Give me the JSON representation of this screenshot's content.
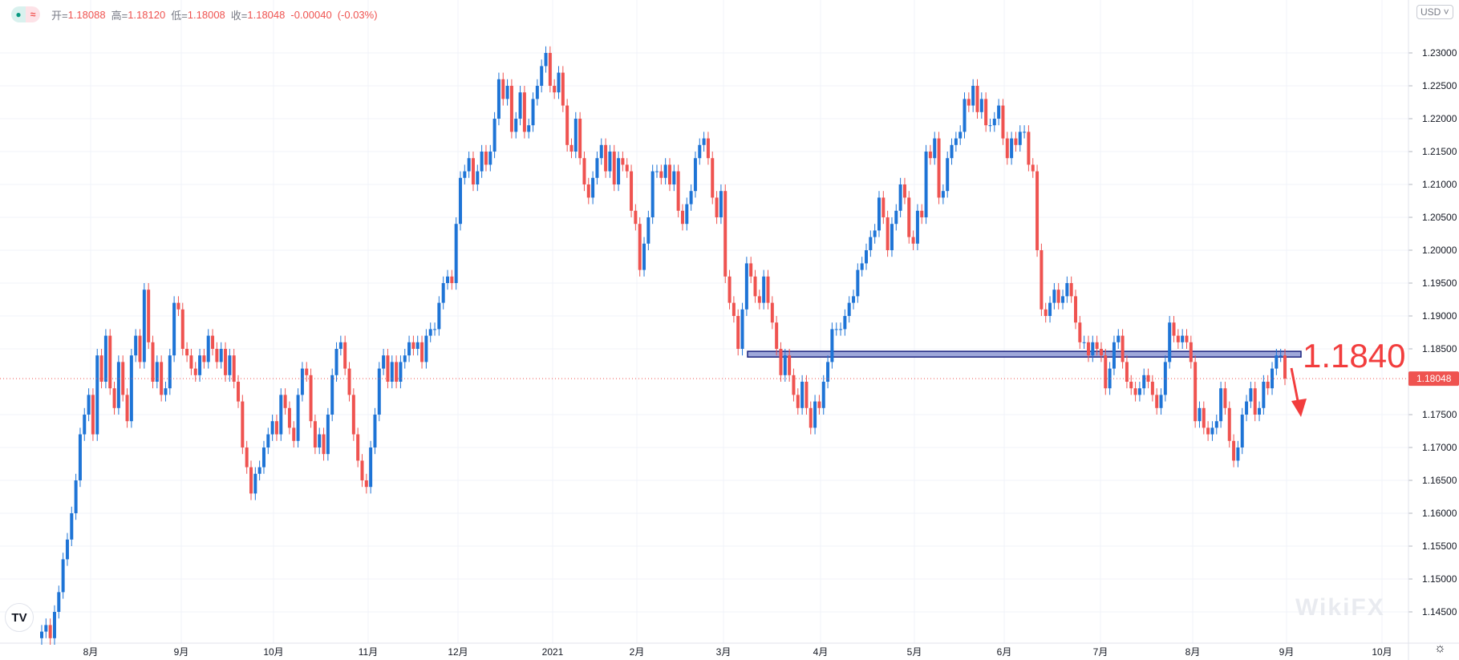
{
  "legend": {
    "open_label": "开=",
    "open": "1.18088",
    "high_label": "高=",
    "high": "1.18120",
    "low_label": "低=",
    "low": "1.18008",
    "close_label": "收=",
    "close": "1.18048",
    "change": "-0.00040",
    "change_pct": "(-0.03%)"
  },
  "currency": "USD ˅",
  "annotation": {
    "text": "1.1840",
    "band": [
      1.184,
      1.1845
    ],
    "color": "#f23d3d"
  },
  "watermark": "WikiFX",
  "logo": "TV",
  "colors": {
    "up": "#1e74d6",
    "down": "#ef5350",
    "grid": "#f0f3fa",
    "band": "#9fa8da"
  },
  "chart_data": {
    "type": "candlestick",
    "ylim": [
      1.1415,
      1.2345
    ],
    "y_ticks": [
      "1.23000",
      "1.22500",
      "1.22000",
      "1.21500",
      "1.21000",
      "1.20500",
      "1.20000",
      "1.19500",
      "1.19000",
      "1.18500",
      "1.17500",
      "1.17000",
      "1.16500",
      "1.16000",
      "1.15500",
      "1.15000",
      "1.14500"
    ],
    "x_ticks": [
      "8月",
      "9月",
      "10月",
      "11月",
      "12月",
      "2021",
      "2月",
      "3月",
      "4月",
      "5月",
      "6月",
      "7月",
      "8月",
      "9月",
      "10月"
    ],
    "last_price": "1.18048",
    "grid": true,
    "close": [
      1.142,
      1.143,
      1.141,
      1.145,
      1.148,
      1.153,
      1.156,
      1.16,
      1.165,
      1.172,
      1.175,
      1.178,
      1.172,
      1.184,
      1.18,
      1.187,
      1.179,
      1.176,
      1.183,
      1.178,
      1.174,
      1.184,
      1.187,
      1.183,
      1.194,
      1.186,
      1.18,
      1.183,
      1.178,
      1.179,
      1.184,
      1.192,
      1.191,
      1.185,
      1.184,
      1.182,
      1.181,
      1.184,
      1.183,
      1.187,
      1.185,
      1.183,
      1.185,
      1.181,
      1.184,
      1.18,
      1.177,
      1.17,
      1.167,
      1.163,
      1.166,
      1.167,
      1.17,
      1.172,
      1.174,
      1.172,
      1.178,
      1.176,
      1.173,
      1.171,
      1.178,
      1.182,
      1.181,
      1.174,
      1.17,
      1.172,
      1.169,
      1.175,
      1.181,
      1.185,
      1.186,
      1.182,
      1.178,
      1.172,
      1.168,
      1.165,
      1.164,
      1.17,
      1.175,
      1.182,
      1.184,
      1.18,
      1.183,
      1.18,
      1.183,
      1.184,
      1.186,
      1.185,
      1.186,
      1.183,
      1.187,
      1.188,
      1.188,
      1.192,
      1.195,
      1.196,
      1.195,
      1.204,
      1.211,
      1.212,
      1.214,
      1.21,
      1.212,
      1.215,
      1.213,
      1.215,
      1.22,
      1.226,
      1.223,
      1.225,
      1.218,
      1.22,
      1.224,
      1.218,
      1.219,
      1.223,
      1.225,
      1.228,
      1.23,
      1.225,
      1.224,
      1.227,
      1.222,
      1.216,
      1.215,
      1.22,
      1.214,
      1.21,
      1.208,
      1.211,
      1.214,
      1.216,
      1.212,
      1.215,
      1.21,
      1.214,
      1.213,
      1.212,
      1.206,
      1.204,
      1.197,
      1.201,
      1.205,
      1.212,
      1.212,
      1.211,
      1.213,
      1.21,
      1.212,
      1.206,
      1.204,
      1.207,
      1.209,
      1.214,
      1.216,
      1.217,
      1.214,
      1.208,
      1.205,
      1.209,
      1.196,
      1.192,
      1.19,
      1.185,
      1.191,
      1.198,
      1.196,
      1.193,
      1.192,
      1.196,
      1.192,
      1.189,
      1.185,
      1.181,
      1.184,
      1.181,
      1.178,
      1.176,
      1.18,
      1.176,
      1.173,
      1.177,
      1.176,
      1.18,
      1.183,
      1.188,
      1.188,
      1.188,
      1.19,
      1.192,
      1.193,
      1.197,
      1.198,
      1.2,
      1.202,
      1.203,
      1.208,
      1.205,
      1.2,
      1.204,
      1.206,
      1.21,
      1.208,
      1.202,
      1.201,
      1.206,
      1.205,
      1.215,
      1.214,
      1.217,
      1.208,
      1.209,
      1.214,
      1.216,
      1.217,
      1.218,
      1.223,
      1.222,
      1.225,
      1.221,
      1.223,
      1.219,
      1.219,
      1.22,
      1.222,
      1.217,
      1.214,
      1.217,
      1.216,
      1.218,
      1.218,
      1.213,
      1.212,
      1.2,
      1.191,
      1.19,
      1.192,
      1.194,
      1.192,
      1.193,
      1.195,
      1.193,
      1.189,
      1.186,
      1.186,
      1.184,
      1.186,
      1.185,
      1.184,
      1.179,
      1.182,
      1.186,
      1.187,
      1.183,
      1.18,
      1.179,
      1.178,
      1.179,
      1.181,
      1.18,
      1.178,
      1.176,
      1.178,
      1.183,
      1.189,
      1.187,
      1.186,
      1.187,
      1.186,
      1.183,
      1.174,
      1.176,
      1.173,
      1.172,
      1.173,
      1.174,
      1.179,
      1.176,
      1.171,
      1.168,
      1.17,
      1.175,
      1.177,
      1.179,
      1.175,
      1.176,
      1.18,
      1.179,
      1.182,
      1.184,
      1.184,
      1.18048
    ]
  }
}
